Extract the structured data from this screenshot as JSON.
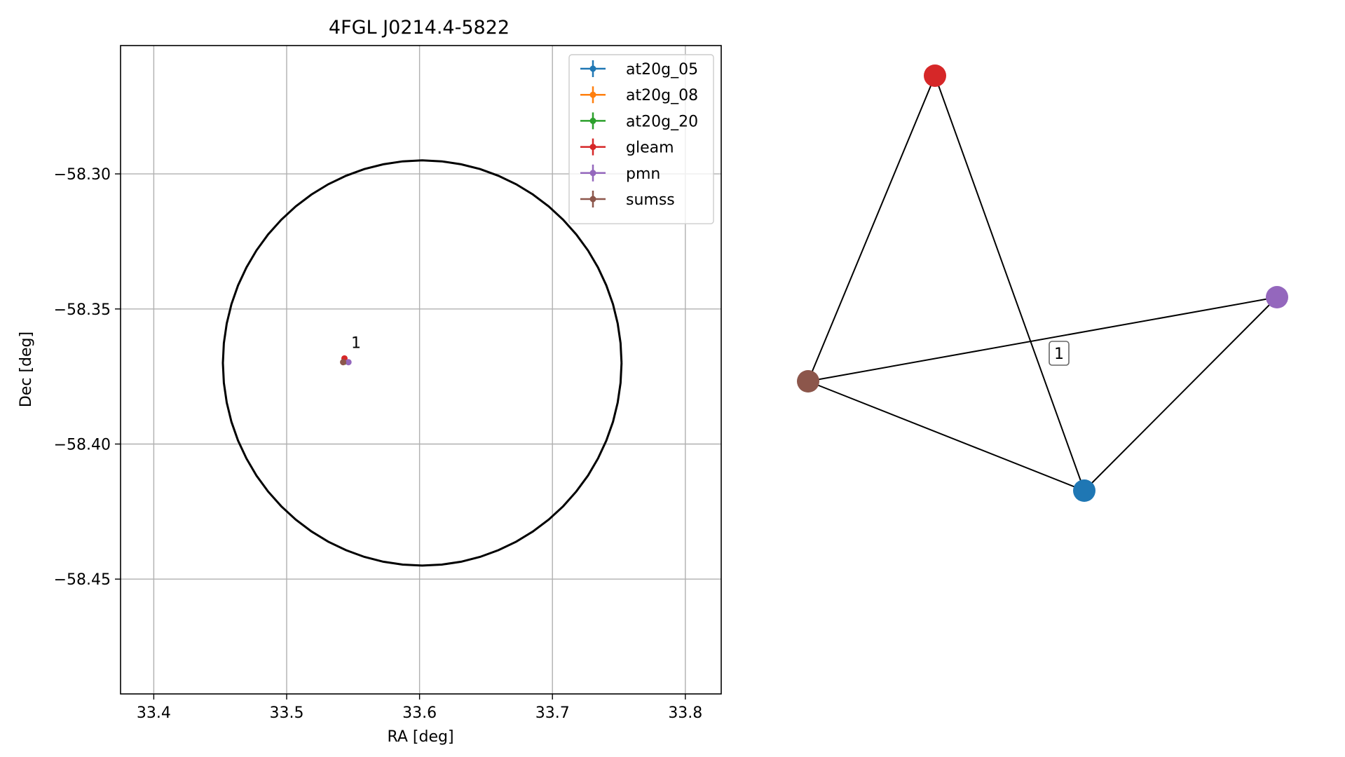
{
  "chart_data": [
    {
      "type": "scatter",
      "title": "4FGL J0214.4-5822",
      "xlabel": "RA [deg]",
      "ylabel": "Dec [deg]",
      "xlim": [
        33.375,
        33.827
      ],
      "ylim": [
        -58.4925,
        -58.2525
      ],
      "grid": true,
      "xticks": [
        {
          "value": 33.4,
          "label": "33.4"
        },
        {
          "value": 33.5,
          "label": "33.5"
        },
        {
          "value": 33.6,
          "label": "33.6"
        },
        {
          "value": 33.7,
          "label": "33.7"
        },
        {
          "value": 33.8,
          "label": "33.8"
        }
      ],
      "yticks": [
        {
          "value": -58.3,
          "label": "−58.30"
        },
        {
          "value": -58.35,
          "label": "−58.35"
        },
        {
          "value": -58.4,
          "label": "−58.40"
        },
        {
          "value": -58.45,
          "label": "−58.45"
        }
      ],
      "ellipse": {
        "center": [
          33.602,
          -58.37
        ],
        "radius_ra": 0.15,
        "radius_dec": 0.075,
        "color": "#000000"
      },
      "legend": {
        "placement": "top-right",
        "entries": [
          {
            "label": "at20g_05",
            "color": "#1f77b4"
          },
          {
            "label": "at20g_08",
            "color": "#ff7f0e"
          },
          {
            "label": "at20g_20",
            "color": "#2ca02c"
          },
          {
            "label": "gleam",
            "color": "#d62728"
          },
          {
            "label": "pmn",
            "color": "#9467bd"
          },
          {
            "label": "sumss",
            "color": "#8c564b"
          }
        ]
      },
      "series": [
        {
          "name": "at20g_05",
          "color": "#1f77b4",
          "x": [
            33.5435
          ],
          "y": [
            -58.3695
          ]
        },
        {
          "name": "at20g_08",
          "color": "#ff7f0e",
          "x": [
            33.5435
          ],
          "y": [
            -58.3695
          ]
        },
        {
          "name": "at20g_20",
          "color": "#2ca02c",
          "x": [
            33.5435
          ],
          "y": [
            -58.3695
          ]
        },
        {
          "name": "gleam",
          "color": "#d62728",
          "x": [
            33.5435
          ],
          "y": [
            -58.3683
          ]
        },
        {
          "name": "pmn",
          "color": "#9467bd",
          "x": [
            33.5465
          ],
          "y": [
            -58.3697
          ]
        },
        {
          "name": "sumss",
          "color": "#8c564b",
          "x": [
            33.5425
          ],
          "y": [
            -58.3697
          ]
        }
      ],
      "annotations": [
        {
          "text": "1",
          "x": 33.5485,
          "y": -58.3645
        }
      ]
    },
    {
      "type": "network",
      "nodes": [
        {
          "id": "at20g",
          "color": "#1f77b4"
        },
        {
          "id": "gleam",
          "color": "#d62728"
        },
        {
          "id": "pmn",
          "color": "#9467bd"
        },
        {
          "id": "sumss",
          "color": "#8c564b"
        }
      ],
      "edges": [
        [
          "gleam",
          "sumss"
        ],
        [
          "gleam",
          "at20g"
        ],
        [
          "sumss",
          "pmn"
        ],
        [
          "sumss",
          "at20g"
        ],
        [
          "at20g",
          "pmn"
        ]
      ],
      "label": "1"
    }
  ]
}
